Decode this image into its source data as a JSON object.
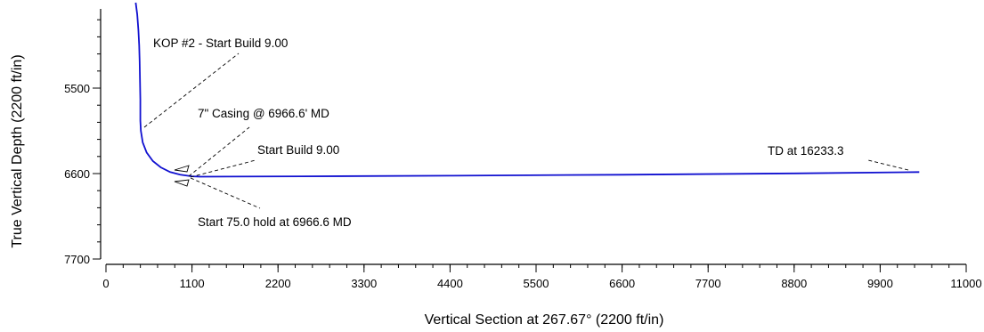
{
  "chart_data": {
    "type": "line",
    "xlabel": "Vertical Section at 267.67° (2200 ft/in)",
    "ylabel": "True Vertical Depth (2200 ft/in)",
    "xlim": [
      0,
      11000
    ],
    "ylim": [
      7700,
      4400
    ],
    "x_ticks": [
      0,
      1100,
      2200,
      3300,
      4400,
      5500,
      6600,
      7700,
      8800,
      9900,
      11000
    ],
    "y_ticks": [
      5500,
      6600,
      7700
    ],
    "x_minor_step": 220,
    "y_minor_step": 220,
    "series": [
      {
        "color": "#1010d0",
        "points": [
          [
            380,
            4400
          ],
          [
            400,
            4550
          ],
          [
            415,
            4750
          ],
          [
            425,
            4950
          ],
          [
            430,
            5150
          ],
          [
            435,
            5400
          ],
          [
            440,
            5650
          ],
          [
            440,
            5920
          ],
          [
            446,
            6050
          ],
          [
            470,
            6200
          ],
          [
            520,
            6330
          ],
          [
            600,
            6440
          ],
          [
            700,
            6520
          ],
          [
            820,
            6580
          ],
          [
            950,
            6615
          ],
          [
            1100,
            6635
          ],
          [
            1200,
            6640
          ],
          [
            2500,
            6636
          ],
          [
            4400,
            6628
          ],
          [
            6600,
            6615
          ],
          [
            8800,
            6598
          ],
          [
            10400,
            6580
          ]
        ]
      }
    ],
    "annotations": [
      {
        "text": "KOP #2 - Start Build 9.00",
        "x": 440,
        "y": 5920
      },
      {
        "text": "7\" Casing @ 6966.6' MD",
        "x": 1100,
        "y": 6630
      },
      {
        "text": "Start Build 9.00",
        "x": 1100,
        "y": 6630
      },
      {
        "text": "TD at 16233.3",
        "x": 10400,
        "y": 6580
      },
      {
        "text": "Start 75.0 hold at 6966.6 MD",
        "x": 1100,
        "y": 6635
      }
    ]
  }
}
